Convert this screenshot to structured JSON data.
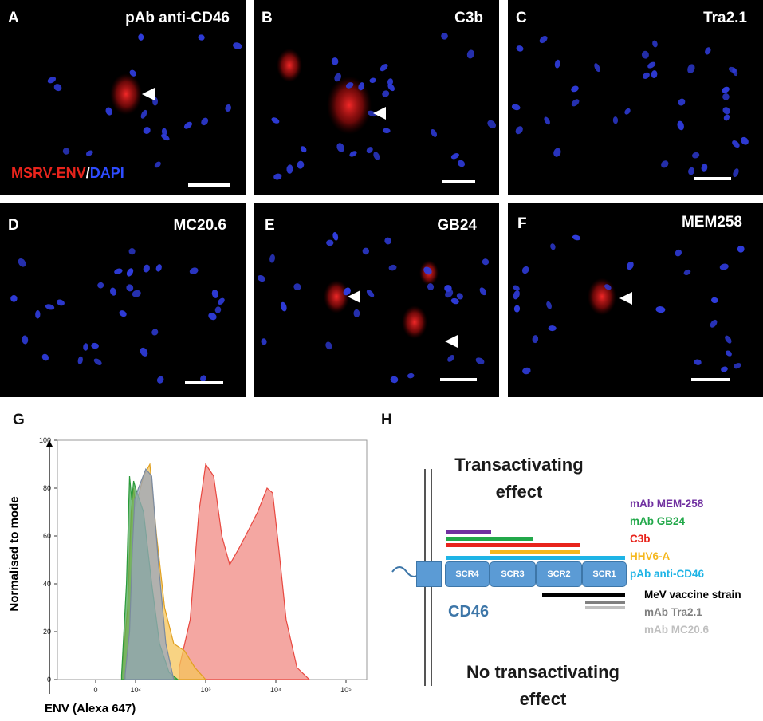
{
  "micrographs": {
    "stain_red": "MSRV-ENV",
    "stain_sep": "/",
    "stain_blue": "DAPI",
    "panels": [
      {
        "letter": "A",
        "title": "pAb anti-CD46"
      },
      {
        "letter": "B",
        "title": "C3b"
      },
      {
        "letter": "C",
        "title": "Tra2.1"
      },
      {
        "letter": "D",
        "title": "MC20.6"
      },
      {
        "letter": "E",
        "title": "GB24"
      },
      {
        "letter": "F",
        "title": "MEM258"
      }
    ]
  },
  "histogram": {
    "letter": "G",
    "ylabel": "Normalised to mode",
    "xlabel": "ENV (Alexa 647)",
    "yticks": [
      "100",
      "80",
      "60",
      "40",
      "20",
      "0"
    ],
    "xticks": [
      "0",
      "10²",
      "10³",
      "10⁴",
      "10⁵"
    ]
  },
  "chart_data": {
    "type": "area",
    "xscale": "log",
    "ylim": [
      0,
      100
    ],
    "xlabel": "ENV (Alexa 647)",
    "ylabel": "Normalised to mode",
    "series": [
      {
        "color": "#e8473f",
        "fill": "#f08a83",
        "x": [
          420,
          600,
          800,
          1000,
          1300,
          1700,
          2200,
          3000,
          4000,
          5500,
          7500,
          9000,
          11000,
          14000,
          20000,
          30000
        ],
        "y": [
          5,
          25,
          70,
          90,
          85,
          60,
          48,
          55,
          62,
          70,
          80,
          78,
          55,
          25,
          5,
          0
        ]
      },
      {
        "color": "#e0a020",
        "fill": "#f6c45a",
        "x": [
          20,
          40,
          60,
          80,
          100,
          130,
          160,
          200,
          260,
          350,
          500,
          700,
          1000
        ],
        "y": [
          2,
          30,
          70,
          80,
          72,
          85,
          90,
          60,
          30,
          15,
          12,
          5,
          0
        ]
      },
      {
        "color": "#2a9a3a",
        "fill": "#4caa56",
        "x": [
          20,
          35,
          50,
          65,
          80,
          100,
          130,
          170,
          220,
          300,
          400
        ],
        "y": [
          2,
          40,
          85,
          75,
          83,
          80,
          70,
          40,
          15,
          3,
          0
        ]
      },
      {
        "color": "#7a8aa0",
        "fill": "#9aa6bc",
        "x": [
          30,
          50,
          70,
          90,
          110,
          140,
          170,
          210,
          270,
          350
        ],
        "y": [
          2,
          20,
          55,
          75,
          80,
          88,
          85,
          50,
          15,
          0
        ]
      }
    ]
  },
  "diagram": {
    "letter": "H",
    "top_text": "Transactivating effect",
    "bottom_text": "No transactivating effect",
    "protein": "CD46",
    "domains": [
      "SCR4",
      "SCR3",
      "SCR2",
      "SCR1"
    ],
    "legend": [
      {
        "label": "mAb MEM-258",
        "color": "#7030a0"
      },
      {
        "label": "mAb GB24",
        "color": "#22a84a"
      },
      {
        "label": "C3b",
        "color": "#e8241c"
      },
      {
        "label": "HHV6-A",
        "color": "#f5b820"
      },
      {
        "label": "pAb anti-CD46",
        "color": "#1eb4e6"
      },
      {
        "label": "MeV vaccine strain",
        "color": "#000000"
      },
      {
        "label": "mAb Tra2.1",
        "color": "#808080"
      },
      {
        "label": "mAb MC20.6",
        "color": "#bfbfbf"
      }
    ]
  }
}
